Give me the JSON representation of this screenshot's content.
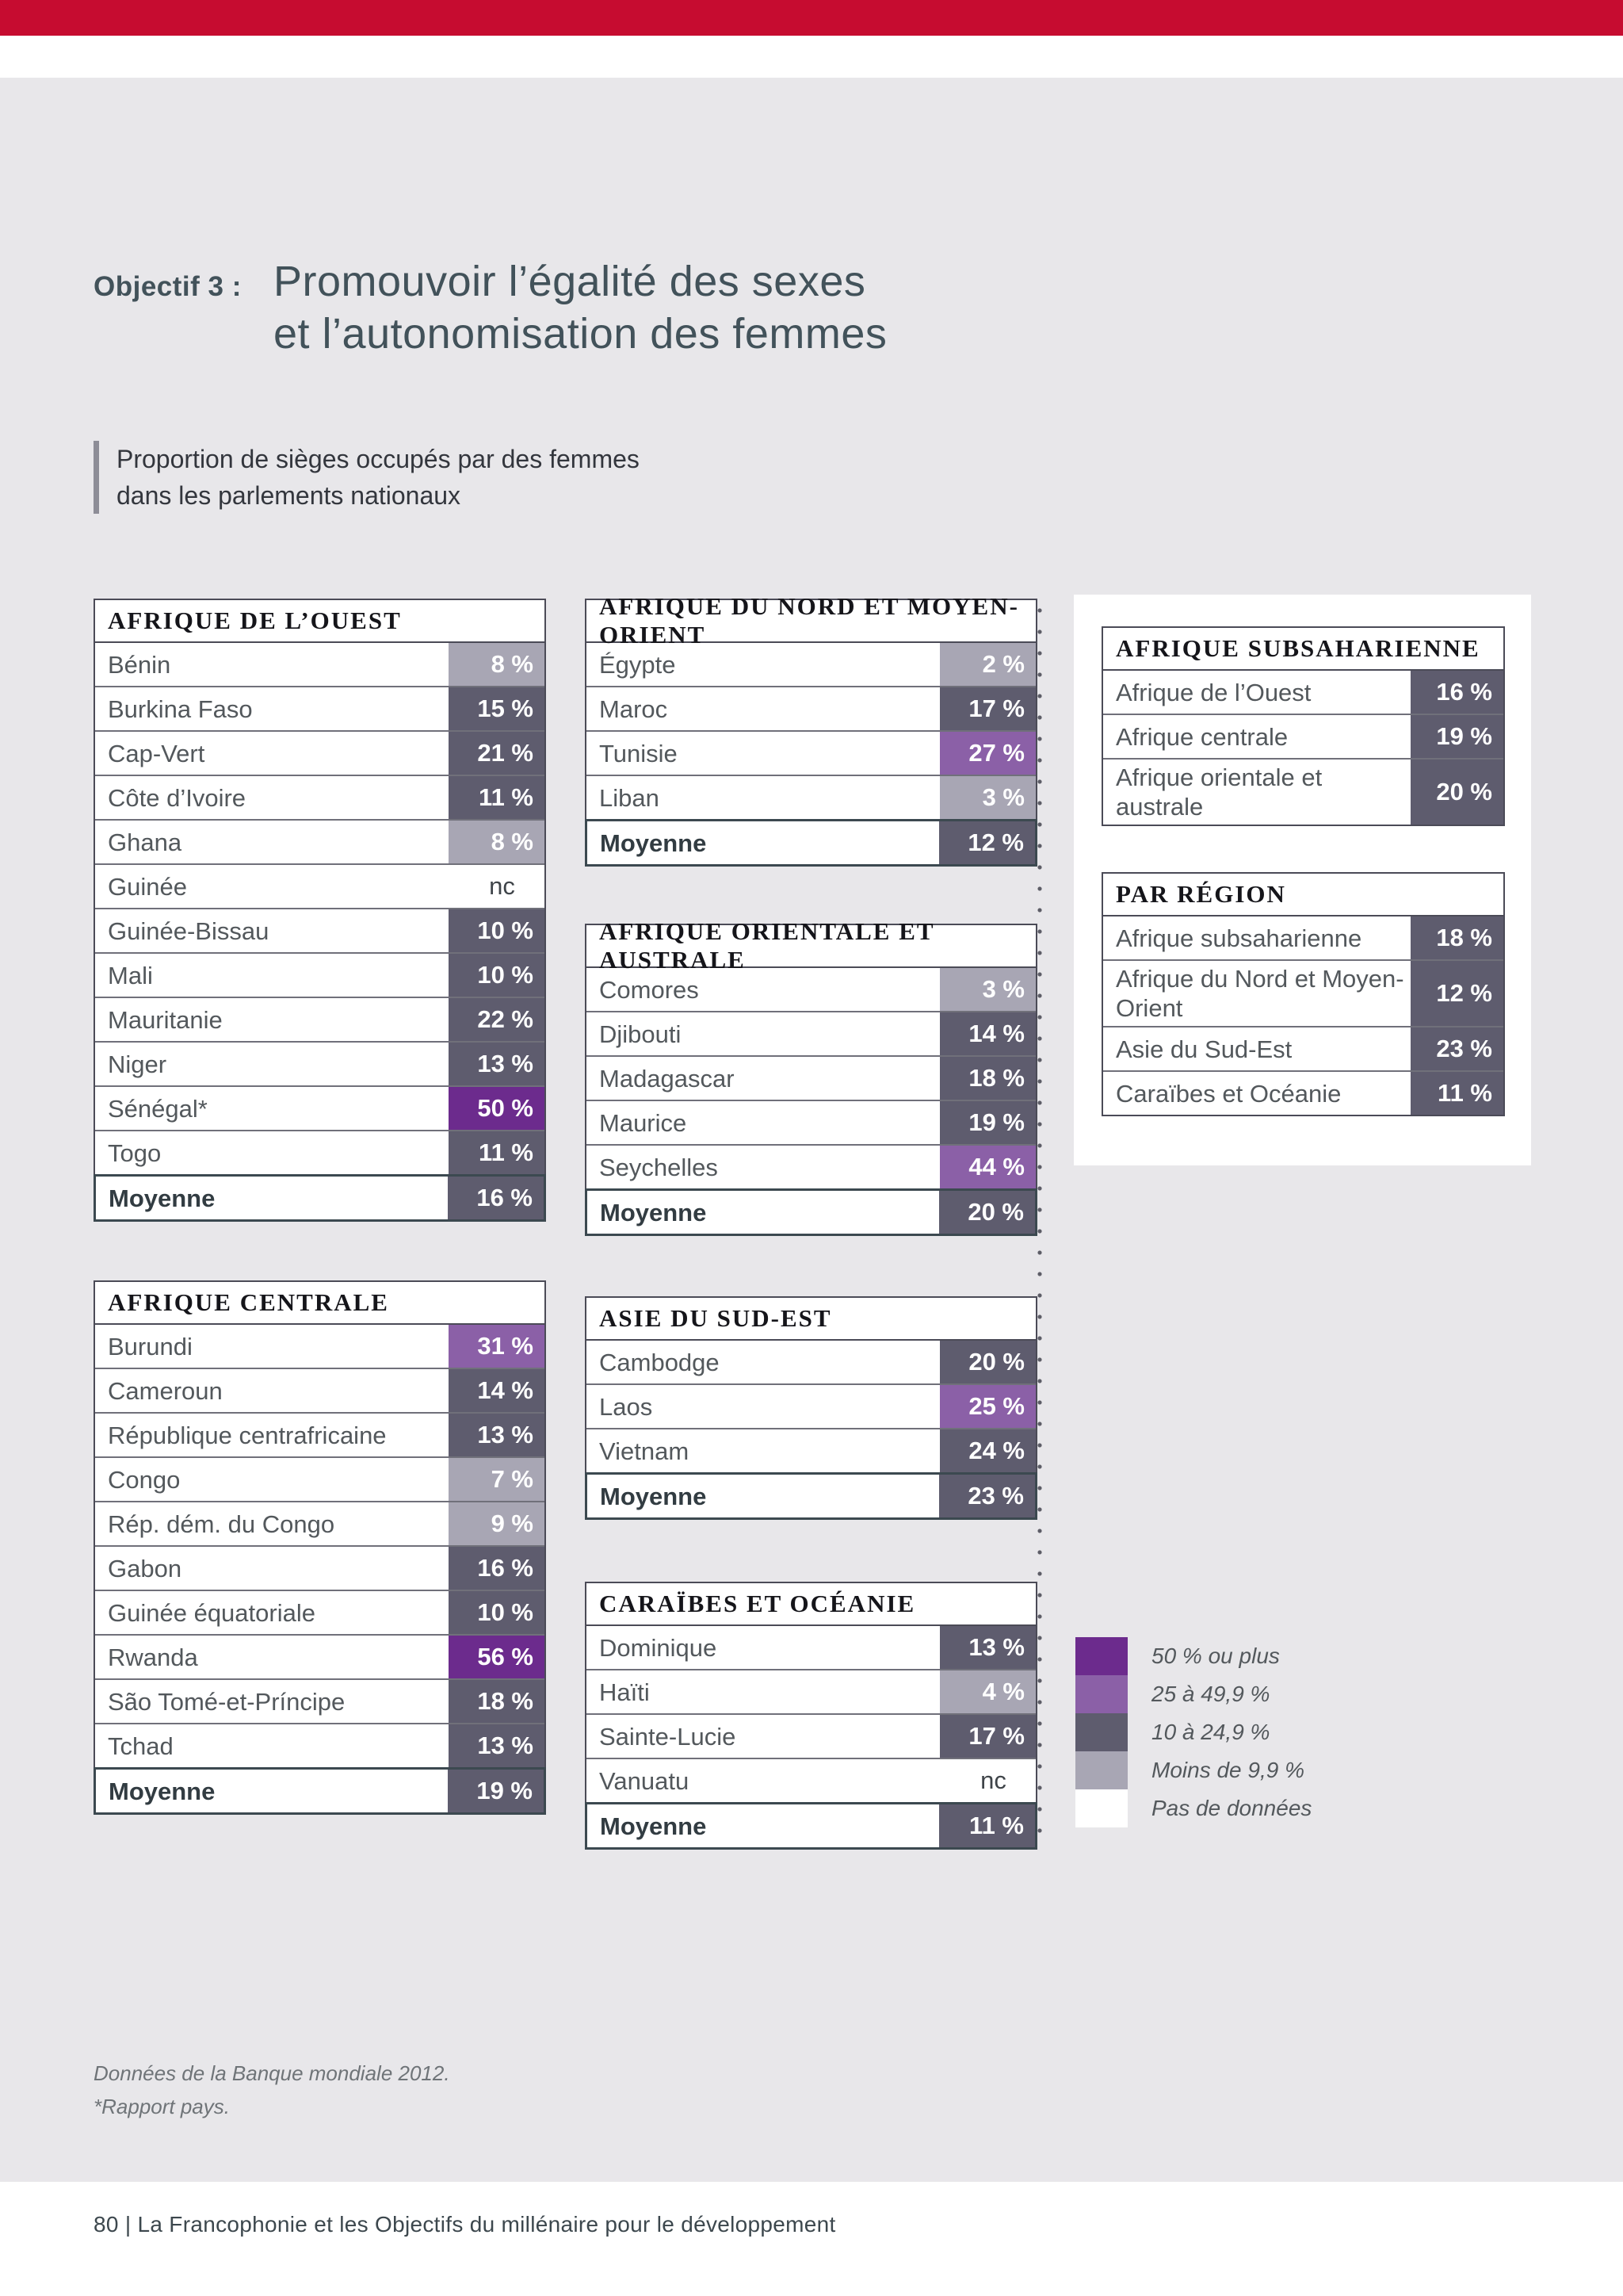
{
  "page": {
    "topbar_color": "#c60c30",
    "title": {
      "label": "Objectif 3 :",
      "line1": "Promouvoir l’égalité des sexes",
      "line2": "et l’autonomisation des femmes"
    },
    "subtitle": {
      "line1": "Proportion de sièges occupés par des femmes",
      "line2": "dans les parlements nationaux"
    },
    "notes": [
      "Données de la Banque mondiale 2012.",
      "*Rapport pays."
    ],
    "footer": "80 | La Francophonie et les Objectifs du millénaire pour le développement"
  },
  "colors": {
    "high": "#6c2b8d",
    "mid": "#8b60a7",
    "low": "#5e5c6e",
    "verylow": "#a8a6b4",
    "none": "#ffffff"
  },
  "tables": [
    {
      "title": "AFRIQUE DE L’OUEST",
      "rows": [
        {
          "label": "Bénin",
          "value": "8 %",
          "tier": "verylow"
        },
        {
          "label": "Burkina Faso",
          "value": "15 %",
          "tier": "low"
        },
        {
          "label": "Cap-Vert",
          "value": "21 %",
          "tier": "low"
        },
        {
          "label": "Côte d’Ivoire",
          "value": "11 %",
          "tier": "low"
        },
        {
          "label": "Ghana",
          "value": "8 %",
          "tier": "verylow"
        },
        {
          "label": "Guinée",
          "value": "nc",
          "tier": "none"
        },
        {
          "label": "Guinée-Bissau",
          "value": "10 %",
          "tier": "low"
        },
        {
          "label": "Mali",
          "value": "10 %",
          "tier": "low"
        },
        {
          "label": "Mauritanie",
          "value": "22 %",
          "tier": "low"
        },
        {
          "label": "Niger",
          "value": "13 %",
          "tier": "low"
        },
        {
          "label": "Sénégal*",
          "value": "50 %",
          "tier": "high"
        },
        {
          "label": "Togo",
          "value": "11 %",
          "tier": "low"
        },
        {
          "label": "Moyenne",
          "value": "16 %",
          "tier": "low",
          "bold": true
        }
      ]
    },
    {
      "title": "AFRIQUE CENTRALE",
      "rows": [
        {
          "label": "Burundi",
          "value": "31 %",
          "tier": "mid"
        },
        {
          "label": "Cameroun",
          "value": "14 %",
          "tier": "low"
        },
        {
          "label": "République centrafricaine",
          "value": "13 %",
          "tier": "low"
        },
        {
          "label": "Congo",
          "value": "7 %",
          "tier": "verylow"
        },
        {
          "label": "Rép. dém. du Congo",
          "value": "9 %",
          "tier": "verylow"
        },
        {
          "label": "Gabon",
          "value": "16 %",
          "tier": "low"
        },
        {
          "label": "Guinée équatoriale",
          "value": "10 %",
          "tier": "low"
        },
        {
          "label": "Rwanda",
          "value": "56 %",
          "tier": "high"
        },
        {
          "label": "São Tomé-et-Príncipe",
          "value": "18 %",
          "tier": "low"
        },
        {
          "label": "Tchad",
          "value": "13 %",
          "tier": "low"
        },
        {
          "label": "Moyenne",
          "value": "19 %",
          "tier": "low",
          "bold": true
        }
      ]
    },
    {
      "title": "AFRIQUE DU NORD ET MOYEN-ORIENT",
      "rows": [
        {
          "label": "Égypte",
          "value": "2 %",
          "tier": "verylow"
        },
        {
          "label": "Maroc",
          "value": "17 %",
          "tier": "low"
        },
        {
          "label": "Tunisie",
          "value": "27 %",
          "tier": "mid"
        },
        {
          "label": "Liban",
          "value": "3 %",
          "tier": "verylow"
        },
        {
          "label": "Moyenne",
          "value": "12 %",
          "tier": "low",
          "bold": true
        }
      ]
    },
    {
      "title": "AFRIQUE ORIENTALE ET AUSTRALE",
      "rows": [
        {
          "label": "Comores",
          "value": "3 %",
          "tier": "verylow"
        },
        {
          "label": "Djibouti",
          "value": "14 %",
          "tier": "low"
        },
        {
          "label": "Madagascar",
          "value": "18 %",
          "tier": "low"
        },
        {
          "label": "Maurice",
          "value": "19 %",
          "tier": "low"
        },
        {
          "label": "Seychelles",
          "value": "44 %",
          "tier": "mid"
        },
        {
          "label": "Moyenne",
          "value": "20 %",
          "tier": "low",
          "bold": true
        }
      ]
    },
    {
      "title": "ASIE DU SUD-EST",
      "rows": [
        {
          "label": "Cambodge",
          "value": "20 %",
          "tier": "low"
        },
        {
          "label": "Laos",
          "value": "25 %",
          "tier": "mid"
        },
        {
          "label": "Vietnam",
          "value": "24 %",
          "tier": "low"
        },
        {
          "label": "Moyenne",
          "value": "23 %",
          "tier": "low",
          "bold": true
        }
      ]
    },
    {
      "title": "CARAÏBES ET OCÉANIE",
      "rows": [
        {
          "label": "Dominique",
          "value": "13 %",
          "tier": "low"
        },
        {
          "label": "Haïti",
          "value": "4 %",
          "tier": "verylow"
        },
        {
          "label": "Sainte-Lucie",
          "value": "17 %",
          "tier": "low"
        },
        {
          "label": "Vanuatu",
          "value": "nc",
          "tier": "none"
        },
        {
          "label": "Moyenne",
          "value": "11 %",
          "tier": "low",
          "bold": true
        }
      ]
    },
    {
      "title": "AFRIQUE SUBSAHARIENNE",
      "rows": [
        {
          "label": "Afrique de l’Ouest",
          "value": "16 %",
          "tier": "low"
        },
        {
          "label": "Afrique centrale",
          "value": "19 %",
          "tier": "low"
        },
        {
          "label": "Afrique orientale et australe",
          "value": "20 %",
          "tier": "low"
        }
      ]
    },
    {
      "title": "PAR RÉGION",
      "rows": [
        {
          "label": "Afrique subsaharienne",
          "value": "18 %",
          "tier": "low"
        },
        {
          "label": "Afrique du Nord et Moyen-Orient",
          "value": "12 %",
          "tier": "low"
        },
        {
          "label": "Asie du Sud-Est",
          "value": "23 %",
          "tier": "low"
        },
        {
          "label": "Caraïbes et Océanie",
          "value": "11 %",
          "tier": "low"
        }
      ]
    }
  ],
  "legend": {
    "items": [
      {
        "label": "50 % ou plus",
        "tier": "high"
      },
      {
        "label": "25 à 49,9 %",
        "tier": "mid"
      },
      {
        "label": "10 à 24,9 %",
        "tier": "low"
      },
      {
        "label": "Moins de 9,9 %",
        "tier": "verylow"
      },
      {
        "label": "Pas de données",
        "tier": "none"
      }
    ]
  }
}
